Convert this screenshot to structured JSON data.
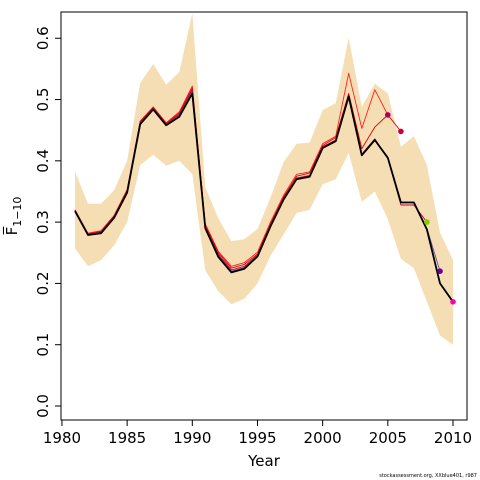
{
  "chart_data": {
    "type": "line",
    "xlabel": "Year",
    "ylabel": "F̅",
    "ylabel_sub": "1−10",
    "credit": "stockassessment.org, XXblue401, r987",
    "xlim": [
      1981,
      2010
    ],
    "ylim": [
      0,
      0.62
    ],
    "x_ticks": [
      1980,
      1985,
      1990,
      1995,
      2000,
      2005,
      2010
    ],
    "y_ticks": [
      0.0,
      0.1,
      0.2,
      0.3,
      0.4,
      0.5,
      0.6
    ],
    "y_tick_labels": [
      "0.0",
      "0.1",
      "0.2",
      "0.3",
      "0.4",
      "0.5",
      "0.6"
    ],
    "grid": false,
    "colors": {
      "band": "#f5deb3",
      "main": "#000000",
      "retro": [
        "#7a0070",
        "#6b4aa0",
        "#c00040",
        "#e60000",
        "#ff2222"
      ],
      "end_points": [
        "#ff00aa",
        "#6a0090",
        "#88cc00",
        "#cc0033",
        "#aa0066"
      ]
    },
    "band": {
      "x": [
        1981,
        1982,
        1983,
        1984,
        1985,
        1986,
        1987,
        1988,
        1989,
        1990,
        1991,
        1992,
        1993,
        1994,
        1995,
        1996,
        1997,
        1998,
        1999,
        2000,
        2001,
        2002,
        2003,
        2004,
        2005,
        2006,
        2007,
        2008,
        2009,
        2010
      ],
      "lower": [
        0.257,
        0.228,
        0.238,
        0.262,
        0.3,
        0.393,
        0.41,
        0.392,
        0.4,
        0.378,
        0.221,
        0.187,
        0.166,
        0.175,
        0.2,
        0.245,
        0.28,
        0.315,
        0.32,
        0.362,
        0.37,
        0.413,
        0.333,
        0.35,
        0.305,
        0.24,
        0.225,
        0.17,
        0.115,
        0.1
      ],
      "upper": [
        0.383,
        0.33,
        0.33,
        0.352,
        0.4,
        0.527,
        0.558,
        0.524,
        0.545,
        0.641,
        0.357,
        0.306,
        0.269,
        0.272,
        0.289,
        0.34,
        0.398,
        0.428,
        0.43,
        0.483,
        0.494,
        0.601,
        0.488,
        0.526,
        0.51,
        0.423,
        0.44,
        0.393,
        0.283,
        0.238
      ]
    },
    "series": [
      {
        "x": [
          1981,
          1982,
          1983,
          1984,
          1985,
          1986,
          1987,
          1988,
          1989,
          1990,
          1991,
          1992,
          1993,
          1994,
          1995,
          1996,
          1997,
          1998,
          1999,
          2000,
          2001,
          2002,
          2003,
          2004,
          2005,
          2006,
          2007,
          2008,
          2009,
          2010
        ],
        "values": [
          0.318,
          0.279,
          0.282,
          0.307,
          0.348,
          0.46,
          0.484,
          0.458,
          0.472,
          0.51,
          0.29,
          0.243,
          0.218,
          0.224,
          0.244,
          0.293,
          0.337,
          0.37,
          0.374,
          0.421,
          0.432,
          0.505,
          0.409,
          0.434,
          0.405,
          0.332,
          0.332,
          0.288,
          0.2,
          0.17
        ]
      },
      {
        "x": [
          1981,
          1982,
          1983,
          1984,
          1985,
          1986,
          1987,
          1988,
          1989,
          1990,
          1991,
          1992,
          1993,
          1994,
          1995,
          1996,
          1997,
          1998,
          1999,
          2000,
          2001,
          2002,
          2003,
          2004,
          2005,
          2006,
          2007,
          2008,
          2009
        ],
        "values": [
          0.318,
          0.279,
          0.283,
          0.308,
          0.349,
          0.461,
          0.485,
          0.459,
          0.474,
          0.513,
          0.291,
          0.245,
          0.22,
          0.226,
          0.245,
          0.294,
          0.338,
          0.371,
          0.375,
          0.422,
          0.433,
          0.506,
          0.41,
          0.435,
          0.406,
          0.333,
          0.333,
          0.29,
          0.22
        ]
      },
      {
        "x": [
          1981,
          1982,
          1983,
          1984,
          1985,
          1986,
          1987,
          1988,
          1989,
          1990,
          1991,
          1992,
          1993,
          1994,
          1995,
          1996,
          1997,
          1998,
          1999,
          2000,
          2001,
          2002,
          2003,
          2004,
          2005,
          2006,
          2007,
          2008
        ],
        "values": [
          0.319,
          0.28,
          0.284,
          0.309,
          0.35,
          0.462,
          0.486,
          0.46,
          0.476,
          0.516,
          0.293,
          0.247,
          0.222,
          0.228,
          0.246,
          0.295,
          0.339,
          0.372,
          0.376,
          0.423,
          0.434,
          0.507,
          0.411,
          0.436,
          0.404,
          0.328,
          0.328,
          0.3
        ]
      },
      {
        "x": [
          1981,
          1982,
          1983,
          1984,
          1985,
          1986,
          1987,
          1988,
          1989,
          1990,
          1991,
          1992,
          1993,
          1994,
          1995,
          1996,
          1997,
          1998,
          1999,
          2000,
          2001,
          2002,
          2003,
          2004,
          2005,
          2006
        ],
        "values": [
          0.32,
          0.281,
          0.285,
          0.31,
          0.352,
          0.464,
          0.487,
          0.461,
          0.478,
          0.519,
          0.295,
          0.25,
          0.225,
          0.231,
          0.248,
          0.297,
          0.341,
          0.375,
          0.38,
          0.425,
          0.438,
          0.51,
          0.42,
          0.455,
          0.475,
          0.448
        ]
      },
      {
        "x": [
          1981,
          1982,
          1983,
          1984,
          1985,
          1986,
          1987,
          1988,
          1989,
          1990,
          1991,
          1992,
          1993,
          1994,
          1995,
          1996,
          1997,
          1998,
          1999,
          2000,
          2001,
          2002,
          2003,
          2004,
          2005
        ],
        "values": [
          0.32,
          0.282,
          0.286,
          0.311,
          0.353,
          0.465,
          0.488,
          0.462,
          0.48,
          0.522,
          0.297,
          0.252,
          0.228,
          0.234,
          0.251,
          0.3,
          0.344,
          0.378,
          0.382,
          0.428,
          0.44,
          0.543,
          0.453,
          0.516,
          0.475
        ]
      }
    ]
  }
}
